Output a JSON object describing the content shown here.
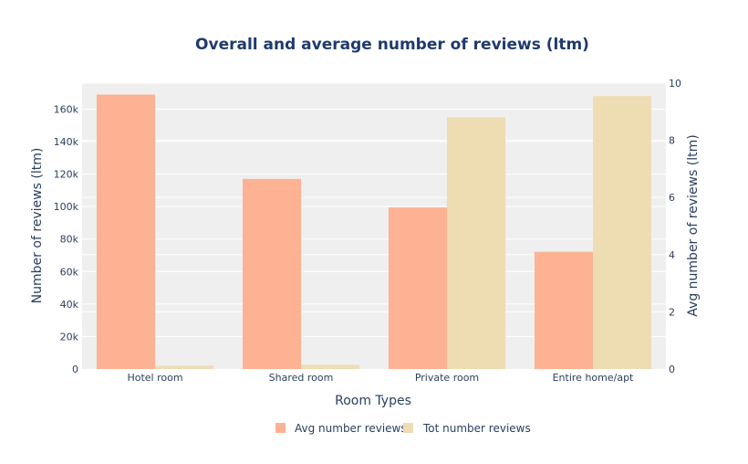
{
  "chart_data": {
    "type": "bar",
    "title": "Overall and average number of reviews (ltm)",
    "xlabel": "Room Types",
    "ylabel": "Number of reviews (ltm)",
    "y2label": "Avg number of reviews (ltm)",
    "categories": [
      "Hotel room",
      "Shared room",
      "Private room",
      "Entire home/apt"
    ],
    "ylim": [
      0,
      176000
    ],
    "y2lim": [
      0,
      10
    ],
    "yticks": [
      "0",
      "20k",
      "40k",
      "60k",
      "80k",
      "100k",
      "120k",
      "140k",
      "160k"
    ],
    "yticks_values": [
      0,
      20000,
      40000,
      60000,
      80000,
      100000,
      120000,
      140000,
      160000
    ],
    "y2ticks": [
      "0",
      "2",
      "4",
      "6",
      "8",
      "10"
    ],
    "y2ticks_values": [
      0,
      2,
      4,
      6,
      8,
      10
    ],
    "series": [
      {
        "name": "Avg number reviews",
        "axis": "right",
        "color": "#fdb294",
        "values": [
          9.6,
          6.65,
          5.65,
          4.1
        ]
      },
      {
        "name": "Tot number reviews",
        "axis": "left",
        "color": "#eedcb3",
        "values": [
          2000,
          2500,
          155000,
          168000
        ]
      }
    ],
    "grid": true,
    "legend": "bottom-center",
    "colors": {
      "plot_bg": "#efefef",
      "text": "#2a3f5f",
      "title": "#1f3a6e"
    }
  }
}
